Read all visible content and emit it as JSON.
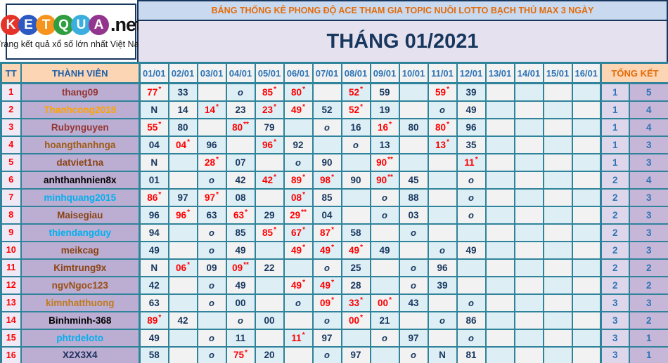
{
  "logo": {
    "letters": [
      {
        "ch": "K",
        "color": "#e63329"
      },
      {
        "ch": "E",
        "color": "#2d59c3"
      },
      {
        "ch": "T",
        "color": "#f7941d"
      },
      {
        "ch": "Q",
        "color": "#2f9e41"
      },
      {
        "ch": "U",
        "color": "#3aaede"
      },
      {
        "ch": "A",
        "color": "#93358d"
      }
    ],
    "suffix": ".net",
    "tagline": "Trang kết quả xổ số lớn nhất Việt Nam"
  },
  "header": {
    "topic_title": "BẢNG THỐNG KÊ PHONG ĐỘ ACE THAM GIA TOPIC NUÔI LOTTO BẠCH THỦ MAX 3 NGÀY",
    "month_title": "THÁNG 01/2021"
  },
  "palette": {
    "grid": "#2f839a",
    "navy": "#17375e",
    "peach": "#fcd5b4",
    "header_blue": "#2e74b5",
    "orange": "#e36c0a",
    "red": "#ff0000",
    "name_bg": "#bcadd2",
    "tt_bg": "#efe9f5",
    "tk1_bg": "#ded6eb",
    "tk2_bg": "#c6b6d8",
    "cell_cyan": "#ddeef5",
    "cell_white": "#f2f2f2",
    "banner_bg": "#c9d9f0",
    "month_bg": "#e6e1ee"
  },
  "table": {
    "col_tt": "TT",
    "col_member": "THÀNH VIÊN",
    "col_total": "TỔNG KẾT",
    "date_columns": [
      "01/01",
      "02/01",
      "03/01",
      "04/01",
      "05/01",
      "06/01",
      "07/01",
      "08/01",
      "09/01",
      "10/01",
      "11/01",
      "12/01",
      "13/01",
      "14/01",
      "15/01",
      "16/01"
    ],
    "rows": [
      {
        "tt": "1",
        "member": "thang09",
        "color": "#943634",
        "values": [
          "77*",
          "33",
          "",
          "o",
          "85*",
          "80*",
          "",
          "52*",
          "59",
          "",
          "59*",
          "39",
          "",
          "",
          "",
          ""
        ],
        "total": [
          "1",
          "5"
        ]
      },
      {
        "tt": "2",
        "member": "Thanhcong2018",
        "color": "#ffa200",
        "values": [
          "N",
          "14",
          "14*",
          "23",
          "23*",
          "49*",
          "52",
          "52*",
          "19",
          "",
          "o",
          "49",
          "",
          "",
          "",
          ""
        ],
        "total": [
          "1",
          "4"
        ]
      },
      {
        "tt": "3",
        "member": "Rubynguyen",
        "color": "#943634",
        "values": [
          "55*",
          "80",
          "",
          "80**",
          "79",
          "",
          "o",
          "16",
          "16*",
          "80",
          "80*",
          "96",
          "",
          "",
          "",
          ""
        ],
        "total": [
          "1",
          "4"
        ]
      },
      {
        "tt": "4",
        "member": "hoangthanhnga",
        "color": "#9f5c16",
        "values": [
          "04",
          "04*",
          "96",
          "",
          "96*",
          "92",
          "",
          "o",
          "13",
          "",
          "13*",
          "35",
          "",
          "",
          "",
          ""
        ],
        "total": [
          "1",
          "3"
        ]
      },
      {
        "tt": "5",
        "member": "datviet1na",
        "color": "#8a4413",
        "values": [
          "N",
          "",
          "28*",
          "07",
          "",
          "o",
          "90",
          "",
          "90**",
          "",
          "",
          "11*",
          "",
          "",
          "",
          ""
        ],
        "total": [
          "1",
          "3"
        ]
      },
      {
        "tt": "6",
        "member": "anhthanhnien8x",
        "color": "#000000",
        "values": [
          "01",
          "",
          "o",
          "42",
          "42*",
          "89*",
          "98*",
          "90",
          "90**",
          "45",
          "",
          "o",
          "",
          "",
          "",
          ""
        ],
        "total": [
          "2",
          "4"
        ]
      },
      {
        "tt": "7",
        "member": "minhquang2015",
        "color": "#00b0f0",
        "values": [
          "86*",
          "97",
          "97*",
          "08",
          "",
          "08*",
          "85",
          "",
          "o",
          "88",
          "",
          "o",
          "",
          "",
          "",
          ""
        ],
        "total": [
          "2",
          "3"
        ]
      },
      {
        "tt": "8",
        "member": "Maisegiau",
        "color": "#8a4413",
        "values": [
          "96",
          "96*",
          "63",
          "63*",
          "29",
          "29**",
          "04",
          "",
          "o",
          "03",
          "",
          "o",
          "",
          "",
          "",
          ""
        ],
        "total": [
          "2",
          "3"
        ]
      },
      {
        "tt": "9",
        "member": "thiendangduy",
        "color": "#00b0f0",
        "values": [
          "94",
          "",
          "o",
          "85",
          "85*",
          "67*",
          "87*",
          "58",
          "",
          "o",
          "",
          "",
          "",
          "",
          "",
          ""
        ],
        "total": [
          "2",
          "3"
        ]
      },
      {
        "tt": "10",
        "member": "meikcag",
        "color": "#8a4413",
        "values": [
          "49",
          "",
          "o",
          "49",
          "",
          "49*",
          "49*",
          "49*",
          "49",
          "",
          "o",
          "49",
          "",
          "",
          "",
          ""
        ],
        "total": [
          "2",
          "3"
        ]
      },
      {
        "tt": "11",
        "member": "Kimtrung9x",
        "color": "#8a4413",
        "values": [
          "N",
          "06*",
          "09",
          "09**",
          "22",
          "",
          "o",
          "25",
          "",
          "o",
          "96",
          "",
          "",
          "",
          "",
          ""
        ],
        "total": [
          "2",
          "2"
        ]
      },
      {
        "tt": "12",
        "member": "ngvNgoc123",
        "color": "#9a4f12",
        "values": [
          "42",
          "",
          "o",
          "49",
          "",
          "49*",
          "49*",
          "28",
          "",
          "o",
          "39",
          "",
          "",
          "",
          "",
          ""
        ],
        "total": [
          "2",
          "2"
        ]
      },
      {
        "tt": "13",
        "member": "kimnhatthuong",
        "color": "#c07a1e",
        "values": [
          "63",
          "",
          "o",
          "00",
          "",
          "o",
          "09*",
          "33*",
          "00*",
          "43",
          "",
          "o",
          "",
          "",
          "",
          ""
        ],
        "total": [
          "3",
          "3"
        ]
      },
      {
        "tt": "14",
        "member": "Binhminh-368",
        "color": "#000000",
        "values": [
          "89*",
          "42",
          "",
          "o",
          "00",
          "",
          "o",
          "00*",
          "21",
          "",
          "o",
          "86",
          "",
          "",
          "",
          ""
        ],
        "total": [
          "3",
          "2"
        ]
      },
      {
        "tt": "15",
        "member": "phtrdeloto",
        "color": "#00b0f0",
        "values": [
          "49",
          "",
          "o",
          "11",
          "",
          "11*",
          "97",
          "",
          "o",
          "97",
          "",
          "o",
          "",
          "",
          "",
          ""
        ],
        "total": [
          "3",
          "1"
        ]
      },
      {
        "tt": "16",
        "member": "X2X3X4",
        "color": "#20315e",
        "values": [
          "58",
          "",
          "o",
          "75*",
          "20",
          "",
          "o",
          "97",
          "",
          "o",
          "N",
          "81",
          "",
          "",
          "",
          ""
        ],
        "total": [
          "3",
          "1"
        ]
      }
    ]
  }
}
